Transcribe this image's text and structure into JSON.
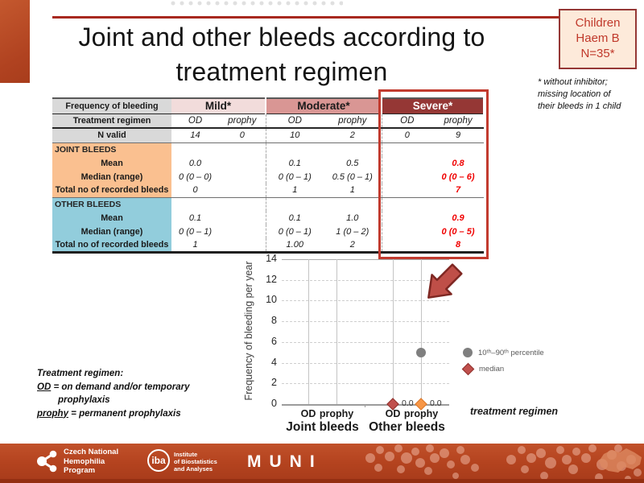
{
  "slide": {
    "title_line1": "Joint and other bleeds according to",
    "title_line2": "treatment regimen",
    "badge": {
      "lines": [
        "Children",
        "Haem B",
        "N=35*"
      ]
    },
    "footnote_lines": [
      "* without inhibitor;",
      "missing location of",
      "their bleeds in 1 child"
    ],
    "regimen_note": {
      "heading": "Treatment regimen:",
      "od_term": "OD",
      "od_def": " = on demand and/or temporary",
      "od_def2": "prophylaxis",
      "prophy_term": "prophy",
      "prophy_def": " = permanent prophylaxis"
    }
  },
  "table": {
    "corner_label": "Frequency of bleeding",
    "row2_label": "Treatment regimen",
    "severity_groups": [
      {
        "label": "Mild*",
        "bg": "#f2dcdb",
        "fg": "#1a1a1a"
      },
      {
        "label": "Moderate*",
        "bg": "#d99694",
        "fg": "#1a1a1a"
      },
      {
        "label": "Severe*",
        "bg": "#953735",
        "fg": "#ffffff"
      }
    ],
    "regimen_cells": [
      "OD",
      "prophy",
      "OD",
      "prophy",
      "OD",
      "prophy"
    ],
    "body_rows": [
      {
        "label": "N valid",
        "section": "head",
        "rule": true,
        "cells": [
          "14",
          "0",
          "10",
          "2",
          "0",
          "9"
        ]
      },
      {
        "label": "JOINT BLEEDS",
        "section": "joint",
        "is_section_header": true,
        "cells": [
          "",
          "",
          "",
          "",
          "",
          ""
        ]
      },
      {
        "label": "Mean",
        "section": "joint",
        "cells": [
          "0.0",
          "",
          "0.1",
          "0.5",
          "",
          "0.8"
        ]
      },
      {
        "label": "Median (range)",
        "section": "joint",
        "cells": [
          "0 (0 – 0)",
          "",
          "0 (0 – 1)",
          "0.5 (0 – 1)",
          "",
          "0 (0 – 6)"
        ]
      },
      {
        "label": "Total no of recorded bleeds",
        "section": "joint",
        "rule": true,
        "cells": [
          "0",
          "",
          "1",
          "1",
          "",
          "7"
        ]
      },
      {
        "label": "OTHER BLEEDS",
        "section": "other",
        "is_section_header": true,
        "cells": [
          "",
          "",
          "",
          "",
          "",
          ""
        ]
      },
      {
        "label": "Mean",
        "section": "other",
        "cells": [
          "0.1",
          "",
          "0.1",
          "1.0",
          "",
          "0.9"
        ]
      },
      {
        "label": "Median (range)",
        "section": "other",
        "cells": [
          "0 (0 – 1)",
          "",
          "0 (0 – 1)",
          "1 (0 – 2)",
          "",
          "0 (0 – 5)"
        ]
      },
      {
        "label": "Total no of recorded bleeds",
        "section": "other",
        "cells": [
          "1",
          "",
          "1.00",
          "2",
          "",
          "8"
        ]
      }
    ],
    "highlighted_column": "Severe* prophy",
    "red_value_color": "#f00000"
  },
  "chart_data": {
    "type": "scatter",
    "ylabel": "Frequency of bleeding per year",
    "xlabel": "treatment regimen",
    "ylim": [
      0,
      14
    ],
    "ytick_step": 2,
    "grid": true,
    "groups": [
      {
        "label": "Joint bleeds",
        "categories": [
          "OD",
          "prophy"
        ]
      },
      {
        "label": "Other bleeds",
        "categories": [
          "OD",
          "prophy"
        ]
      }
    ],
    "series": [
      {
        "name": "10th–90th percentile",
        "marker": "circle",
        "color": "#7f7f7f",
        "points": [
          {
            "group": "Other bleeds",
            "category": "prophy",
            "value": 5
          }
        ]
      },
      {
        "name": "median",
        "marker": "diamond",
        "color": "#c0504d",
        "points": [
          {
            "group": "Other bleeds",
            "category": "OD",
            "value": 0,
            "label": "0.0",
            "color": "#c0504d"
          },
          {
            "group": "Other bleeds",
            "category": "prophy",
            "value": 0,
            "label": "0.0",
            "color": "#f79646"
          }
        ]
      }
    ],
    "legend": [
      {
        "label": "10ᵗʰ–90ᵗʰ percentile",
        "marker": "circle",
        "color": "#7f7f7f"
      },
      {
        "label": "median",
        "marker": "diamond",
        "color": "#c0504d"
      }
    ],
    "legend_position": "right"
  },
  "footer": {
    "org1_lines": [
      "Czech National",
      "Hemophilia",
      "Program"
    ],
    "org2_logo_text": "iba",
    "org2_lines": [
      "Institute",
      "of Biostatistics",
      "and Analyses"
    ],
    "org3_text": "MUNI"
  },
  "colors": {
    "accent_red_line": "#a8291f",
    "left_bar": "#b4431f",
    "badge_bg": "#fdeada",
    "badge_border": "#953735",
    "badge_text": "#c0392b",
    "severe_highlight_box": "#c23b2f",
    "header_gray": "#d9d9d9",
    "joint_section_bg": "#fac090",
    "other_section_bg": "#92cddc",
    "mild_header_bg": "#f2dcdb",
    "moderate_header_bg": "#d99694",
    "severe_header_bg": "#953735",
    "arrow_fill": "#bf4f48",
    "footer_band": "#b4431f"
  }
}
